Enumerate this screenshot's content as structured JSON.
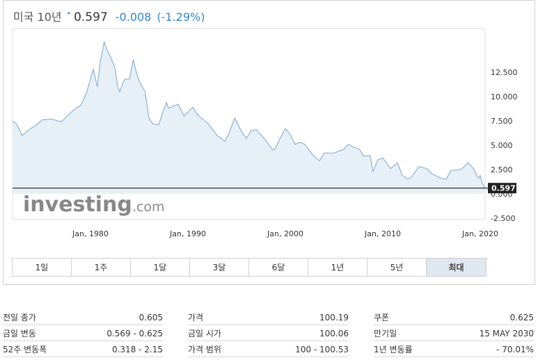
{
  "header": {
    "name": "미국 10년",
    "marker": "•",
    "price": "0.597",
    "change": "-0.008",
    "change_pct": "(-1.29%)"
  },
  "chart_data": {
    "type": "area",
    "title": "",
    "xlabel": "",
    "ylabel": "",
    "x_range": [
      1972.0,
      2020.5
    ],
    "ylim": [
      -2.5,
      16.0
    ],
    "y_ticks": [
      "12.500",
      "10.000",
      "7.500",
      "5.000",
      "2.500",
      "0.000",
      "-2.500"
    ],
    "x_ticks": [
      "Jan, 1980",
      "Jan, 1990",
      "Jan, 2000",
      "Jan, 2010",
      "Jan, 2020"
    ],
    "watermark": "investing.com",
    "current_value": 0.597,
    "current_label": "0.597",
    "grid": false,
    "legend": "none",
    "colors": {
      "line": "#8db1d6",
      "fill": "#e8f0f7",
      "baseline": "#333333",
      "label_bg": "#222222"
    },
    "series": [
      {
        "x": [
          1972.0,
          1972.4,
          1973.0,
          1973.8,
          1974.5,
          1975.0,
          1976.0,
          1977.0,
          1977.8,
          1978.5,
          1979.0,
          1979.6,
          1980.0,
          1980.3,
          1980.7,
          1981.0,
          1981.4,
          1981.7,
          1982.0,
          1982.5,
          1982.8,
          1983.0,
          1983.5,
          1984.0,
          1984.4,
          1984.7,
          1985.0,
          1985.6,
          1986.0,
          1986.4,
          1987.0,
          1987.4,
          1987.8,
          1988.0,
          1988.7,
          1989.0,
          1989.6,
          1990.0,
          1990.5,
          1991.0,
          1992.0,
          1993.0,
          1993.8,
          1994.2,
          1994.8,
          1995.5,
          1996.0,
          1996.5,
          1997.0,
          1998.0,
          1998.7,
          1999.0,
          1999.5,
          2000.0,
          2000.5,
          2001.0,
          2001.5,
          2002.0,
          2002.8,
          2003.5,
          2004.0,
          2005.0,
          2006.0,
          2006.5,
          2007.0,
          2007.6,
          2008.0,
          2008.7,
          2009.0,
          2009.5,
          2010.0,
          2010.8,
          2011.5,
          2012.0,
          2012.6,
          2013.0,
          2013.7,
          2014.5,
          2015.0,
          2016.0,
          2016.5,
          2017.0,
          2018.0,
          2018.8,
          2019.3,
          2019.8,
          2020.0,
          2020.2,
          2020.5
        ],
        "y": [
          7.5,
          7.2,
          6.0,
          6.7,
          7.1,
          7.6,
          7.7,
          7.4,
          8.2,
          8.8,
          9.1,
          10.4,
          11.8,
          12.8,
          11.0,
          13.5,
          15.6,
          14.8,
          14.2,
          13.0,
          11.0,
          10.5,
          11.8,
          11.8,
          13.8,
          12.5,
          11.6,
          10.5,
          7.8,
          7.2,
          7.1,
          8.3,
          9.4,
          8.8,
          9.1,
          9.2,
          8.0,
          8.4,
          8.9,
          8.1,
          7.3,
          6.0,
          5.4,
          6.2,
          7.8,
          6.4,
          5.7,
          6.5,
          6.6,
          5.5,
          4.5,
          4.7,
          5.8,
          6.7,
          6.1,
          5.1,
          5.3,
          5.1,
          4.0,
          3.4,
          4.2,
          4.2,
          4.6,
          5.1,
          4.8,
          4.6,
          3.9,
          3.9,
          2.3,
          3.5,
          3.7,
          2.6,
          3.2,
          1.9,
          1.5,
          1.8,
          2.8,
          2.6,
          2.1,
          1.6,
          1.5,
          2.4,
          2.5,
          3.2,
          2.6,
          1.6,
          1.9,
          1.1,
          0.597
        ]
      }
    ]
  },
  "ranges": {
    "items": [
      "1일",
      "1주",
      "1달",
      "3달",
      "6달",
      "1년",
      "5년",
      "최대"
    ],
    "active": "최대"
  },
  "stats": {
    "col1": [
      {
        "label": "전일 종가",
        "value": "0.605"
      },
      {
        "label": "금일 변동",
        "value": "0.569 - 0.625"
      },
      {
        "label": "52주 변동폭",
        "value": "0.318 - 2.15"
      }
    ],
    "col2": [
      {
        "label": "가격",
        "value": "100.19"
      },
      {
        "label": "금일 시가",
        "value": "100.06"
      },
      {
        "label": "가격 범위",
        "value": "100 - 100.53"
      }
    ],
    "col3": [
      {
        "label": "쿠폰",
        "value": "0.625"
      },
      {
        "label": "만기일",
        "value": "15 MAY 2030"
      },
      {
        "label": "1년 변동률",
        "value": "- 70.01%"
      }
    ]
  }
}
